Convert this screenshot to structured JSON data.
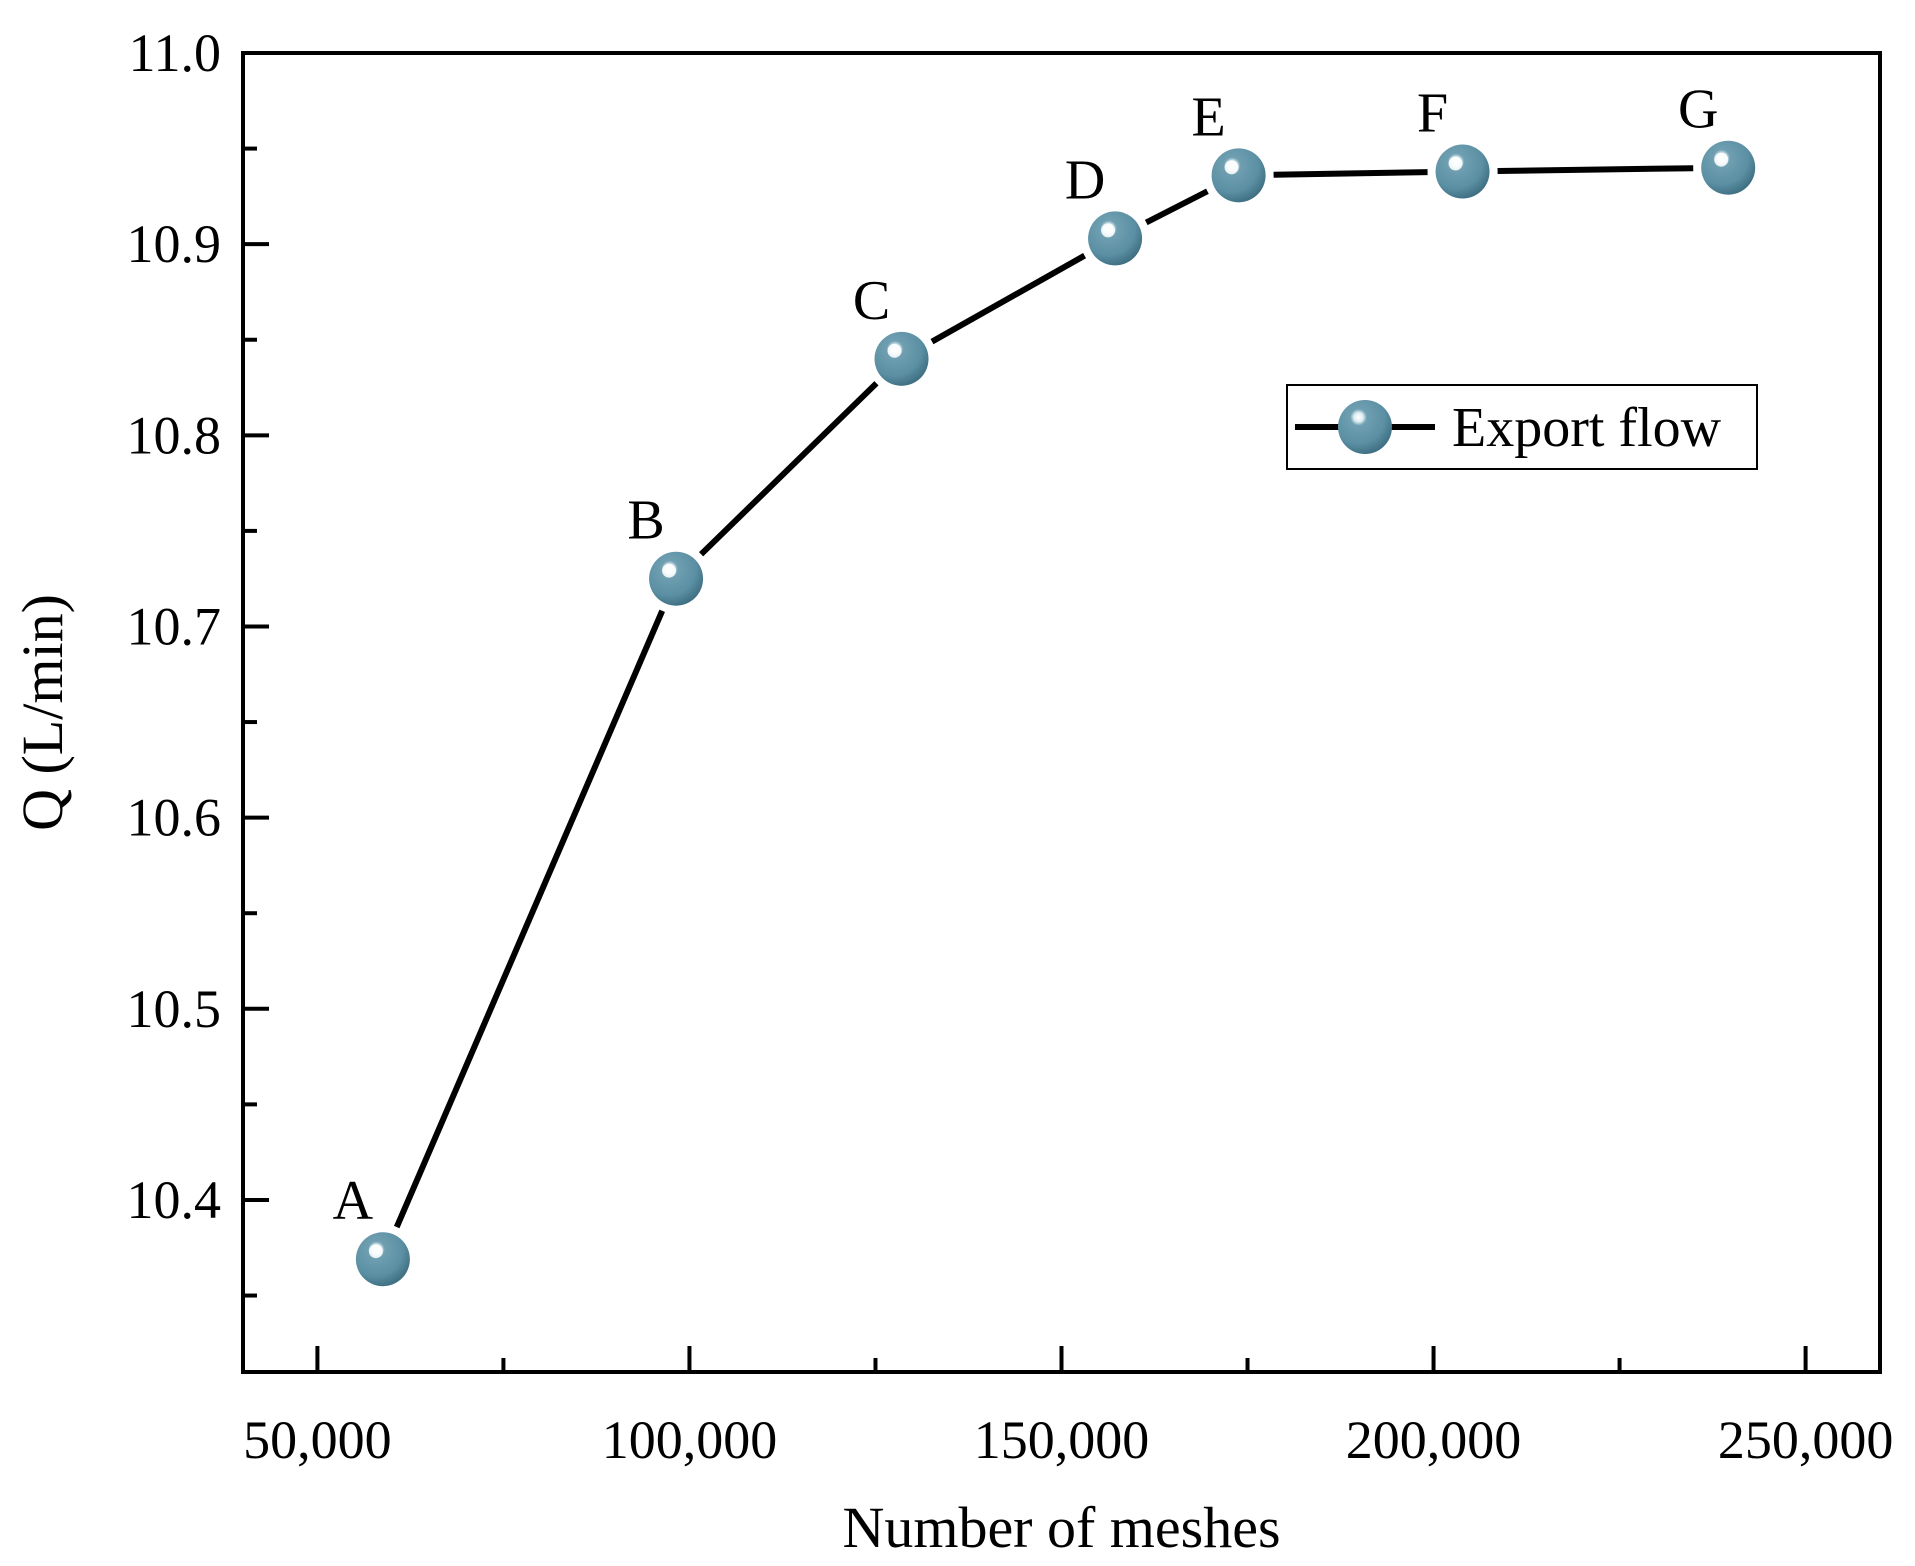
{
  "chart_data": {
    "type": "line",
    "xlabel": "Number of meshes",
    "ylabel": "Q (L/min)",
    "xlim": [
      40000,
      260000
    ],
    "ylim": [
      10.31,
      11.0
    ],
    "x_ticks": [
      50000,
      100000,
      150000,
      200000,
      250000
    ],
    "x_tick_labels": [
      "50,000",
      "100,000",
      "150,000",
      "200,000",
      "250,000"
    ],
    "y_ticks": [
      10.4,
      10.5,
      10.6,
      10.7,
      10.8,
      10.9,
      11.0
    ],
    "y_tick_labels": [
      "10.4",
      "10.5",
      "10.6",
      "10.7",
      "10.8",
      "10.9",
      "11.0"
    ],
    "grid": false,
    "legend_position": "upper-right",
    "series": [
      {
        "name": "Export flow",
        "color": "#5b8fa3",
        "line_color": "#000000",
        "points": [
          {
            "label": "A",
            "x": 58800,
            "y": 10.369
          },
          {
            "label": "B",
            "x": 98200,
            "y": 10.725
          },
          {
            "label": "C",
            "x": 128500,
            "y": 10.84
          },
          {
            "label": "D",
            "x": 157200,
            "y": 10.903
          },
          {
            "label": "E",
            "x": 173800,
            "y": 10.936
          },
          {
            "label": "F",
            "x": 203900,
            "y": 10.938
          },
          {
            "label": "G",
            "x": 239600,
            "y": 10.94
          }
        ]
      }
    ]
  }
}
